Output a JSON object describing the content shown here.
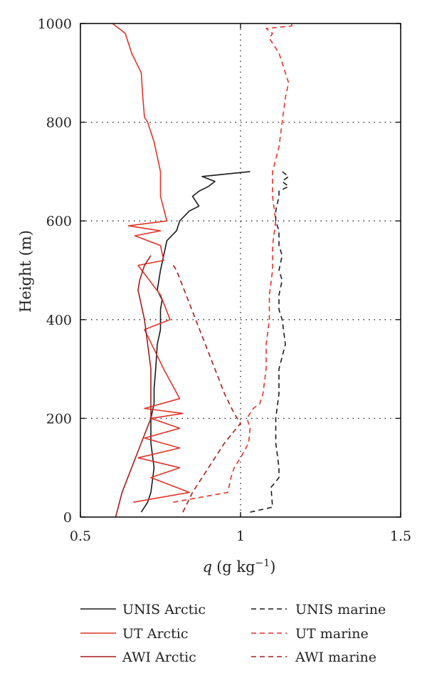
{
  "chart_data": {
    "type": "line",
    "title": "",
    "xlabel": {
      "symbol": "q",
      "unit": "(g kg",
      "exponent": "−1",
      "close": ")"
    },
    "ylabel": "Height (m)",
    "xlim": [
      0.5,
      1.5
    ],
    "ylim": [
      0,
      1000
    ],
    "xticks": [
      0.5,
      1,
      1.5
    ],
    "xtick_labels": [
      "0.5",
      "1",
      "1.5"
    ],
    "yticks": [
      0,
      200,
      400,
      600,
      800,
      1000
    ],
    "ytick_labels": [
      "0",
      "200",
      "400",
      "600",
      "800",
      "1000"
    ],
    "grid": "dotted at x=1 and y=200, 400, 600, 800",
    "legend_position": "below plot, two columns",
    "series": [
      {
        "name": "UNIS Arctic",
        "color": "#1a1a1a",
        "dash": "solid",
        "x": [
          0.69,
          0.71,
          0.72,
          0.73,
          0.72,
          0.72,
          0.73,
          0.73,
          0.735,
          0.74,
          0.75,
          0.75,
          0.75,
          0.755,
          0.74,
          0.75,
          0.77,
          0.8,
          0.81,
          0.84,
          0.87,
          0.85,
          0.87,
          0.9,
          0.92,
          0.88,
          1.03
        ],
        "y": [
          10,
          30,
          50,
          100,
          150,
          200,
          230,
          260,
          300,
          350,
          380,
          400,
          420,
          440,
          460,
          500,
          560,
          580,
          600,
          620,
          630,
          650,
          660,
          670,
          680,
          690,
          700
        ]
      },
      {
        "name": "UT Arctic",
        "color": "#e0342a",
        "dash": "solid",
        "x": [
          0.665,
          0.84,
          0.8,
          0.72,
          0.81,
          0.68,
          0.81,
          0.7,
          0.81,
          0.72,
          0.82,
          0.7,
          0.81,
          0.76,
          0.7,
          0.78,
          0.75,
          0.68,
          0.76,
          0.75,
          0.67,
          0.75,
          0.65,
          0.77,
          0.75,
          0.75,
          0.74,
          0.73,
          0.72,
          0.71,
          0.7,
          0.695,
          0.69,
          0.66,
          0.65,
          0.64,
          0.62,
          0.6
        ],
        "y": [
          30,
          50,
          60,
          80,
          100,
          120,
          140,
          160,
          180,
          200,
          210,
          220,
          240,
          300,
          380,
          400,
          450,
          510,
          520,
          550,
          570,
          580,
          590,
          600,
          650,
          700,
          730,
          760,
          780,
          800,
          810,
          850,
          900,
          940,
          960,
          980,
          990,
          1000
        ]
      },
      {
        "name": "AWI Arctic",
        "color": "#a81c1c",
        "dash": "solid",
        "x": [
          0.61,
          0.63,
          0.66,
          0.69,
          0.72,
          0.72,
          0.7,
          0.68,
          0.685,
          0.7,
          0.72
        ],
        "y": [
          0,
          50,
          100,
          150,
          200,
          300,
          400,
          460,
          480,
          510,
          530
        ]
      },
      {
        "name": "UNIS marine",
        "color": "#1a1a1a",
        "dash": "dashed",
        "x": [
          1.03,
          1.1,
          1.095,
          1.12,
          1.12,
          1.11,
          1.11,
          1.12,
          1.12,
          1.14,
          1.13,
          1.12,
          1.12,
          1.13,
          1.12,
          1.13,
          1.12,
          1.12,
          1.11,
          1.11,
          1.12,
          1.12,
          1.15,
          1.13,
          1.15,
          1.13
        ],
        "y": [
          10,
          20,
          60,
          80,
          100,
          150,
          200,
          250,
          300,
          350,
          400,
          420,
          450,
          480,
          500,
          530,
          550,
          580,
          600,
          620,
          650,
          660,
          670,
          680,
          690,
          700
        ]
      },
      {
        "name": "UT marine",
        "color": "#e0342a",
        "dash": "dashed",
        "x": [
          0.79,
          0.96,
          0.97,
          0.98,
          1.0,
          1.025,
          1.03,
          1.02,
          1.04,
          1.06,
          1.07,
          1.08,
          1.08,
          1.09,
          1.09,
          1.1,
          1.1,
          1.11,
          1.1,
          1.1,
          1.12,
          1.13,
          1.14,
          1.15,
          1.14,
          1.13,
          1.12,
          1.1,
          1.09,
          1.1,
          1.09,
          1.08,
          1.16,
          1.16
        ],
        "y": [
          30,
          50,
          80,
          100,
          120,
          150,
          180,
          200,
          220,
          230,
          250,
          300,
          350,
          400,
          450,
          500,
          550,
          600,
          650,
          700,
          750,
          800,
          850,
          880,
          900,
          920,
          940,
          960,
          970,
          980,
          985,
          990,
          995,
          1000
        ]
      },
      {
        "name": "AWI marine",
        "color": "#a81c1c",
        "dash": "dashed",
        "x": [
          0.82,
          0.85,
          0.9,
          0.95,
          1.0,
          0.98,
          0.95,
          0.92,
          0.89,
          0.86,
          0.83,
          0.8,
          0.79
        ],
        "y": [
          10,
          50,
          100,
          150,
          190,
          210,
          250,
          300,
          350,
          400,
          450,
          500,
          510
        ]
      }
    ]
  }
}
